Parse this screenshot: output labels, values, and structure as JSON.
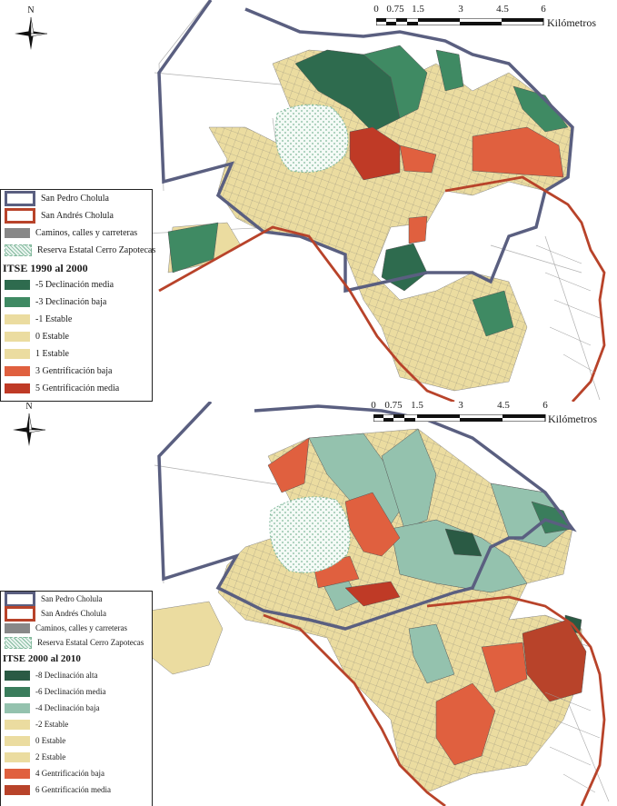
{
  "maps": [
    {
      "legend_title": "ITSE 1990 al 2000",
      "boundaries": [
        {
          "label": "San Pedro Cholula",
          "color": "#5a5f80"
        },
        {
          "label": "San Andrés Cholula",
          "color": "#b8432a"
        },
        {
          "label": "Caminos, calles y carreteras",
          "color": "#888888"
        },
        {
          "label": "Reserva Estatal Cerro Zapotecas",
          "color": "#7fb79a"
        }
      ],
      "classes": [
        {
          "label": "-5 Declinación media",
          "color": "#2e6b4e"
        },
        {
          "label": "-3 Declinación baja",
          "color": "#3f8a63"
        },
        {
          "label": "-1 Estable",
          "color": "#ebdca0"
        },
        {
          "label": "0 Estable",
          "color": "#ebdca0"
        },
        {
          "label": "1 Estable",
          "color": "#ebdca0"
        },
        {
          "label": "3 Gentrificación baja",
          "color": "#e0603f"
        },
        {
          "label": "5 Gentrificación media",
          "color": "#bf3a26"
        }
      ],
      "scale": {
        "ticks": [
          "0",
          "0.75",
          "1.5",
          "3",
          "4.5",
          "6"
        ],
        "unit": "Kilómetros"
      },
      "north": "N"
    },
    {
      "legend_title": "ITSE 2000 al 2010",
      "boundaries": [
        {
          "label": "San Pedro Cholula",
          "color": "#5a5f80"
        },
        {
          "label": "San Andrés Cholula",
          "color": "#b8432a"
        },
        {
          "label": "Caminos, calles y carreteras",
          "color": "#888888"
        },
        {
          "label": "Reserva Estatal Cerro Zapotecas",
          "color": "#7fb79a"
        }
      ],
      "classes": [
        {
          "label": "-8 Declinación alta",
          "color": "#2a5a44"
        },
        {
          "label": "-6 Declinación media",
          "color": "#3a7d5c"
        },
        {
          "label": "-4 Declinación baja",
          "color": "#94c2ae"
        },
        {
          "label": "-2 Estable",
          "color": "#ebdca0"
        },
        {
          "label": "0 Estable",
          "color": "#ebdca0"
        },
        {
          "label": "2 Estable",
          "color": "#ebdca0"
        },
        {
          "label": "4 Gentrificación baja",
          "color": "#e0603f"
        },
        {
          "label": "6 Gentrificación media",
          "color": "#b8432a"
        }
      ],
      "scale": {
        "ticks": [
          "0",
          "0.75",
          "1.5",
          "3",
          "4.5",
          "6"
        ],
        "unit": "Kilómetros"
      },
      "north": "N"
    }
  ]
}
